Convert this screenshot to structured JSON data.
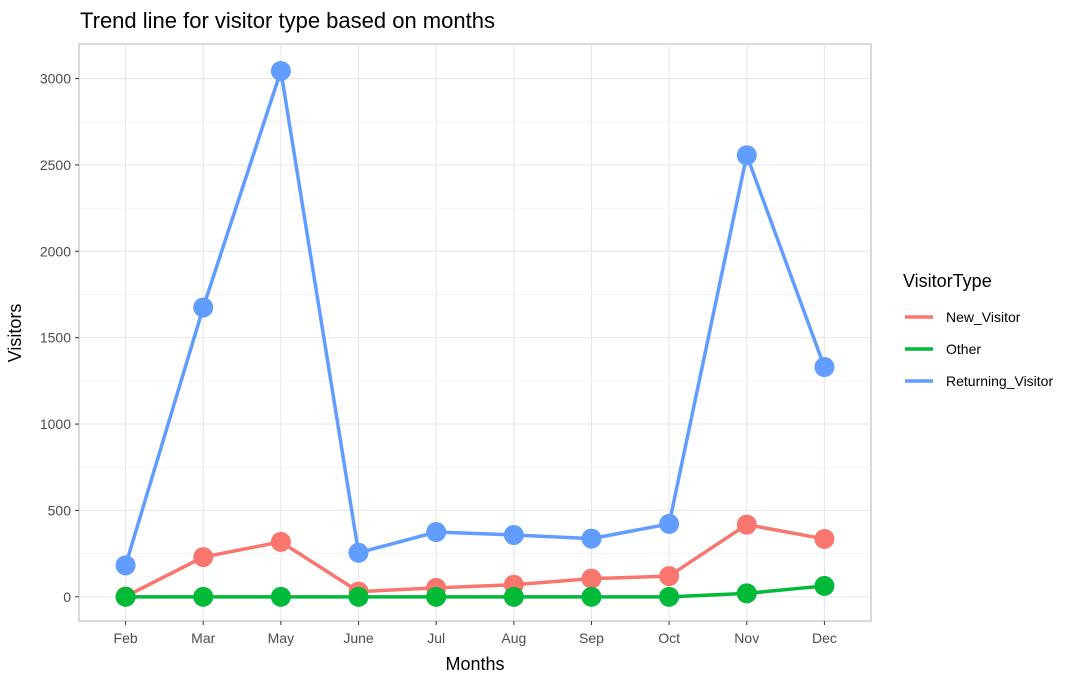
{
  "chart_data": {
    "type": "line",
    "title": "Trend line for visitor type based on months",
    "xlabel": "Months",
    "ylabel": "Visitors",
    "categories": [
      "Feb",
      "Mar",
      "May",
      "June",
      "Jul",
      "Aug",
      "Sep",
      "Oct",
      "Nov",
      "Dec"
    ],
    "ylim": [
      -140,
      3200
    ],
    "yticks": [
      0,
      500,
      1000,
      1500,
      2000,
      2500,
      3000
    ],
    "grid": true,
    "legend": {
      "title": "VisitorType",
      "placement": "right"
    },
    "series": [
      {
        "name": "New_Visitor",
        "color": "#F8766D",
        "values": [
          2,
          230,
          318,
          30,
          52,
          70,
          105,
          120,
          418,
          335
        ]
      },
      {
        "name": "Other",
        "color": "#00BA38",
        "values": [
          0,
          0,
          0,
          0,
          0,
          0,
          0,
          0,
          20,
          63
        ]
      },
      {
        "name": "Returning_Visitor",
        "color": "#619CFF",
        "values": [
          182,
          1675,
          3044,
          255,
          375,
          358,
          337,
          422,
          2556,
          1330
        ]
      }
    ]
  }
}
